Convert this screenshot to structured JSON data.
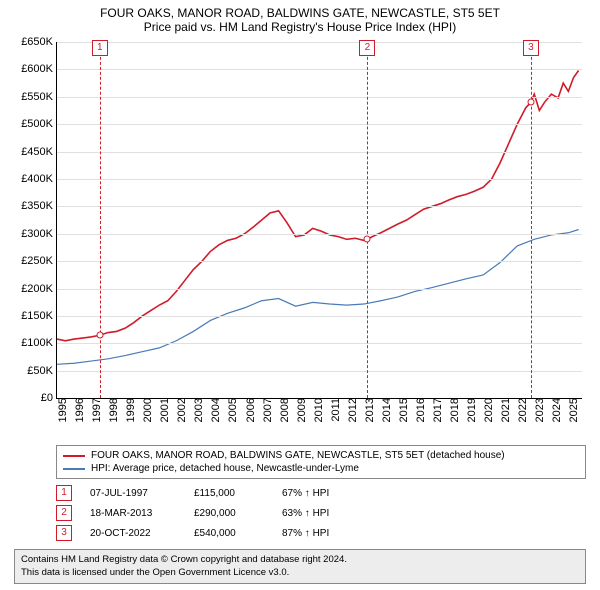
{
  "title_line1": "FOUR OAKS, MANOR ROAD, BALDWINS GATE, NEWCASTLE, ST5 5ET",
  "title_line2": "Price paid vs. HM Land Registry's House Price Index (HPI)",
  "chart": {
    "type": "line",
    "x_min": 1995,
    "x_max": 2025.8,
    "y_min": 0,
    "y_max": 650000,
    "y_ticks": [
      0,
      50000,
      100000,
      150000,
      200000,
      250000,
      300000,
      350000,
      400000,
      450000,
      500000,
      550000,
      600000,
      650000
    ],
    "y_labels": [
      "£0",
      "£50K",
      "£100K",
      "£150K",
      "£200K",
      "£250K",
      "£300K",
      "£350K",
      "£400K",
      "£450K",
      "£500K",
      "£550K",
      "£600K",
      "£650K"
    ],
    "x_ticks": [
      1995,
      1996,
      1997,
      1998,
      1999,
      2000,
      2001,
      2002,
      2003,
      2004,
      2005,
      2006,
      2007,
      2008,
      2009,
      2010,
      2011,
      2012,
      2013,
      2014,
      2015,
      2016,
      2017,
      2018,
      2019,
      2020,
      2021,
      2022,
      2023,
      2024,
      2025
    ],
    "grid_color": "#e0e0e0",
    "axis_color": "#000000",
    "background_color": "#ffffff",
    "marker_vline_color": "#d01c2a"
  },
  "series": [
    {
      "key": "a",
      "color": "#d01c2a",
      "label": "FOUR OAKS, MANOR ROAD, BALDWINS GATE, NEWCASTLE, ST5 5ET (detached house)",
      "points": [
        [
          1995,
          108000
        ],
        [
          1995.5,
          105000
        ],
        [
          1996,
          108000
        ],
        [
          1996.5,
          110000
        ],
        [
          1997,
          112000
        ],
        [
          1997.5,
          115000
        ],
        [
          1998,
          120000
        ],
        [
          1998.5,
          122000
        ],
        [
          1999,
          128000
        ],
        [
          1999.5,
          138000
        ],
        [
          2000,
          150000
        ],
        [
          2000.5,
          160000
        ],
        [
          2001,
          170000
        ],
        [
          2001.5,
          178000
        ],
        [
          2002,
          195000
        ],
        [
          2002.5,
          215000
        ],
        [
          2003,
          235000
        ],
        [
          2003.5,
          250000
        ],
        [
          2004,
          268000
        ],
        [
          2004.5,
          280000
        ],
        [
          2005,
          288000
        ],
        [
          2005.5,
          292000
        ],
        [
          2006,
          300000
        ],
        [
          2006.5,
          312000
        ],
        [
          2007,
          325000
        ],
        [
          2007.5,
          338000
        ],
        [
          2008,
          342000
        ],
        [
          2008.5,
          320000
        ],
        [
          2009,
          295000
        ],
        [
          2009.5,
          298000
        ],
        [
          2010,
          310000
        ],
        [
          2010.5,
          305000
        ],
        [
          2011,
          298000
        ],
        [
          2011.5,
          295000
        ],
        [
          2012,
          290000
        ],
        [
          2012.5,
          292000
        ],
        [
          2013,
          288000
        ],
        [
          2013.21,
          290000
        ],
        [
          2013.5,
          295000
        ],
        [
          2014,
          302000
        ],
        [
          2014.5,
          310000
        ],
        [
          2015,
          318000
        ],
        [
          2015.5,
          325000
        ],
        [
          2016,
          335000
        ],
        [
          2016.5,
          345000
        ],
        [
          2017,
          350000
        ],
        [
          2017.5,
          355000
        ],
        [
          2018,
          362000
        ],
        [
          2018.5,
          368000
        ],
        [
          2019,
          372000
        ],
        [
          2019.5,
          378000
        ],
        [
          2020,
          385000
        ],
        [
          2020.5,
          400000
        ],
        [
          2021,
          430000
        ],
        [
          2021.5,
          465000
        ],
        [
          2022,
          500000
        ],
        [
          2022.5,
          530000
        ],
        [
          2022.8,
          540000
        ],
        [
          2023,
          555000
        ],
        [
          2023.3,
          525000
        ],
        [
          2023.6,
          540000
        ],
        [
          2024,
          555000
        ],
        [
          2024.4,
          548000
        ],
        [
          2024.7,
          575000
        ],
        [
          2025,
          560000
        ],
        [
          2025.3,
          585000
        ],
        [
          2025.6,
          598000
        ]
      ]
    },
    {
      "key": "b",
      "color": "#4a7bb5",
      "label": "HPI: Average price, detached house, Newcastle-under-Lyme",
      "points": [
        [
          1995,
          62000
        ],
        [
          1996,
          64000
        ],
        [
          1997,
          68000
        ],
        [
          1998,
          72000
        ],
        [
          1999,
          78000
        ],
        [
          2000,
          85000
        ],
        [
          2001,
          92000
        ],
        [
          2002,
          105000
        ],
        [
          2003,
          122000
        ],
        [
          2004,
          142000
        ],
        [
          2005,
          155000
        ],
        [
          2006,
          165000
        ],
        [
          2007,
          178000
        ],
        [
          2008,
          182000
        ],
        [
          2009,
          168000
        ],
        [
          2010,
          175000
        ],
        [
          2011,
          172000
        ],
        [
          2012,
          170000
        ],
        [
          2013,
          172000
        ],
        [
          2014,
          178000
        ],
        [
          2015,
          185000
        ],
        [
          2016,
          195000
        ],
        [
          2017,
          202000
        ],
        [
          2018,
          210000
        ],
        [
          2019,
          218000
        ],
        [
          2020,
          225000
        ],
        [
          2021,
          248000
        ],
        [
          2022,
          278000
        ],
        [
          2023,
          290000
        ],
        [
          2024,
          298000
        ],
        [
          2025,
          302000
        ],
        [
          2025.6,
          308000
        ]
      ]
    }
  ],
  "markers": [
    {
      "n": "1",
      "x": 1997.51,
      "y": 115000,
      "badge_color": "#d01c2a"
    },
    {
      "n": "2",
      "x": 2013.21,
      "y": 290000,
      "badge_color": "#d01c2a"
    },
    {
      "n": "3",
      "x": 2022.8,
      "y": 540000,
      "badge_color": "#d01c2a"
    }
  ],
  "sales": [
    {
      "n": "1",
      "date": "07-JUL-1997",
      "price": "£115,000",
      "delta": "67% ↑ HPI",
      "color": "#d01c2a"
    },
    {
      "n": "2",
      "date": "18-MAR-2013",
      "price": "£290,000",
      "delta": "63% ↑ HPI",
      "color": "#d01c2a"
    },
    {
      "n": "3",
      "date": "20-OCT-2022",
      "price": "£540,000",
      "delta": "87% ↑ HPI",
      "color": "#d01c2a"
    }
  ],
  "footer_line1": "Contains HM Land Registry data © Crown copyright and database right 2024.",
  "footer_line2": "This data is licensed under the Open Government Licence v3.0."
}
